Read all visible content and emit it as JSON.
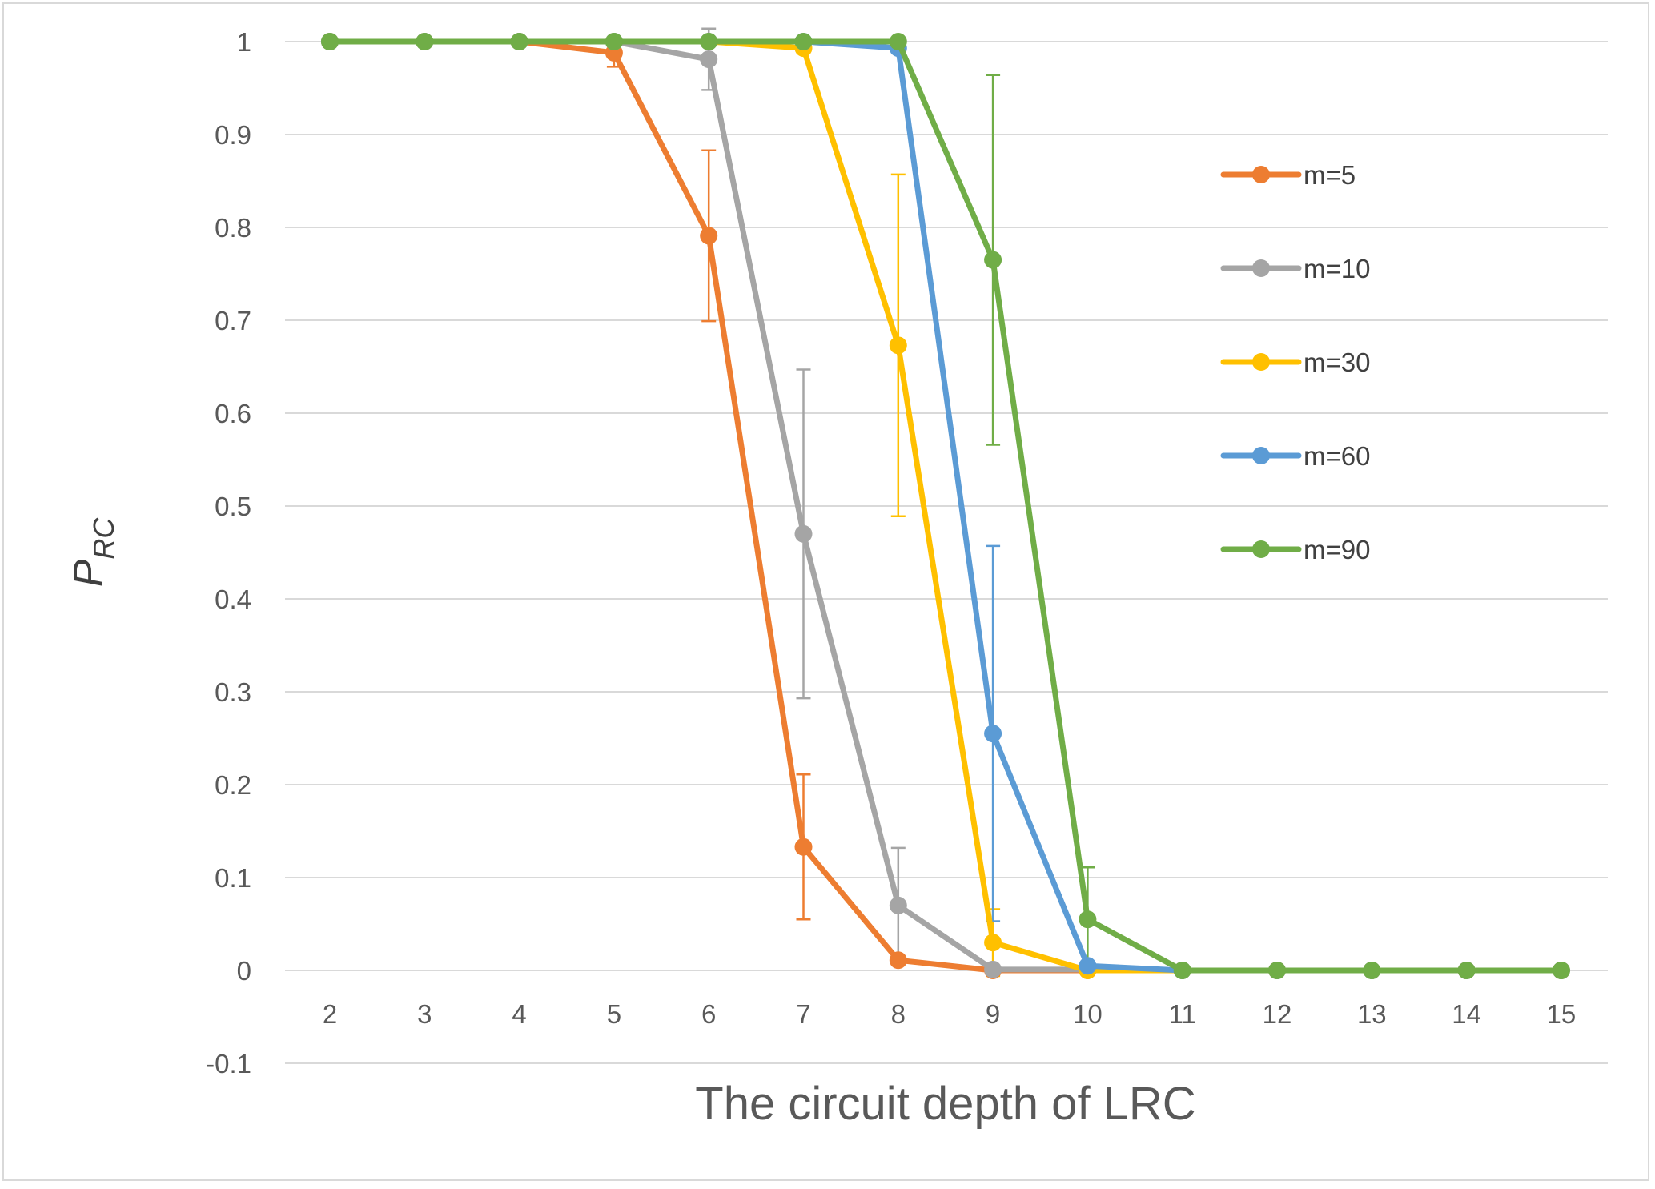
{
  "chart_data": {
    "type": "line",
    "title": "",
    "xlabel": "The circuit depth of LRC",
    "ylabel": {
      "main": "P",
      "sub": "RC"
    },
    "x": [
      2,
      3,
      4,
      5,
      6,
      7,
      8,
      9,
      10,
      11,
      12,
      13,
      14,
      15
    ],
    "x_ticks": [
      "2",
      "3",
      "4",
      "5",
      "6",
      "7",
      "8",
      "9",
      "10",
      "11",
      "12",
      "13",
      "14",
      "15"
    ],
    "ylim": [
      -0.1,
      1
    ],
    "y_ticks": [
      "-0.1",
      "0",
      "0.1",
      "0.2",
      "0.3",
      "0.4",
      "0.5",
      "0.6",
      "0.7",
      "0.8",
      "0.9",
      "1"
    ],
    "grid": true,
    "legend_position": "right",
    "series": [
      {
        "name": "m=5",
        "color": "#ED7D31",
        "values": [
          1,
          1,
          1,
          0.988,
          0.791,
          0.133,
          0.011,
          0,
          0,
          0,
          0,
          0,
          0,
          0
        ],
        "errors": [
          0,
          0,
          0,
          0.015,
          0.092,
          0.078,
          0,
          0,
          0,
          0,
          0,
          0,
          0,
          0
        ]
      },
      {
        "name": "m=10",
        "color": "#A5A5A5",
        "values": [
          1,
          1,
          1,
          1,
          0.981,
          0.47,
          0.07,
          0.001,
          0.001,
          0,
          0,
          0,
          0,
          0
        ],
        "errors": [
          0,
          0,
          0,
          0,
          0.033,
          0.177,
          0.062,
          0,
          0,
          0,
          0,
          0,
          0,
          0
        ]
      },
      {
        "name": "m=30",
        "color": "#FFC000",
        "values": [
          1,
          1,
          1,
          1,
          1,
          0.993,
          0.673,
          0.03,
          0,
          0,
          0,
          0,
          0,
          0
        ],
        "errors": [
          0,
          0,
          0,
          0,
          0,
          0,
          0.184,
          0.036,
          0,
          0,
          0,
          0,
          0,
          0
        ]
      },
      {
        "name": "m=60",
        "color": "#5B9BD5",
        "values": [
          1,
          1,
          1,
          1,
          1,
          1,
          0.993,
          0.255,
          0.005,
          0,
          0,
          0,
          0,
          0
        ],
        "errors": [
          0,
          0,
          0,
          0,
          0,
          0,
          0,
          0.202,
          0,
          0,
          0,
          0,
          0,
          0
        ]
      },
      {
        "name": "m=90",
        "color": "#70AD47",
        "values": [
          1,
          1,
          1,
          1,
          1,
          1,
          1,
          0.765,
          0.055,
          0,
          0,
          0,
          0,
          0
        ],
        "errors": [
          0,
          0,
          0,
          0,
          0,
          0,
          0,
          0.199,
          0.056,
          0,
          0,
          0,
          0,
          0
        ]
      }
    ]
  }
}
